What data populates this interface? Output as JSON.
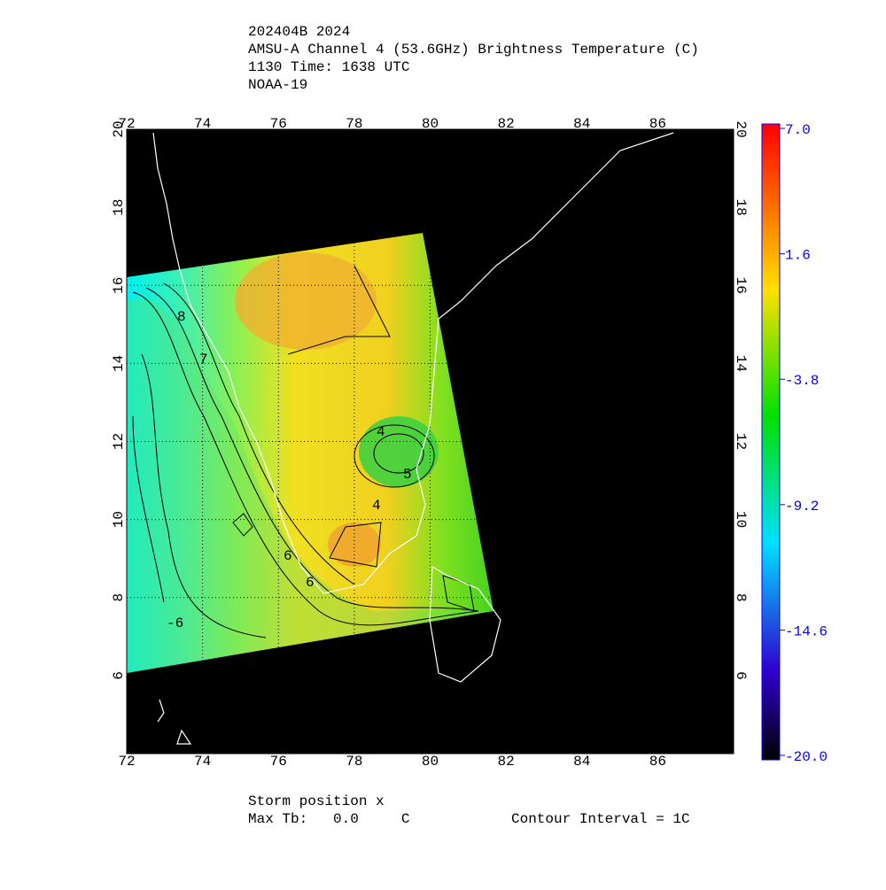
{
  "header": {
    "lines": [
      "202404B 2024",
      "AMSU-A Channel 4 (53.6GHz) Brightness Temperature (C)",
      "1130 Time: 1638 UTC",
      "NOAA-19"
    ]
  },
  "map": {
    "lon_range": [
      72,
      88
    ],
    "lat_range": [
      4,
      20
    ],
    "lon_ticks": [
      72,
      74,
      76,
      78,
      80,
      82,
      84,
      86
    ],
    "lat_ticks": [
      6,
      8,
      10,
      12,
      14,
      16,
      18,
      20
    ],
    "contour_labels": [
      "8",
      "7",
      "6",
      "4",
      "5",
      "4",
      "6",
      "-6"
    ]
  },
  "colorbar": {
    "range": [
      -20,
      7
    ],
    "ticks": [
      {
        "value": 7,
        "label": "7.0"
      },
      {
        "value": 1.6,
        "label": "1.6"
      },
      {
        "value": -3.8,
        "label": "-3.8"
      },
      {
        "value": -9.2,
        "label": "-9.2"
      },
      {
        "value": -14.6,
        "label": "-14.6"
      },
      {
        "value": -20,
        "label": "-20.0"
      }
    ]
  },
  "footer": {
    "storm": "Storm position x",
    "max_tb": "Max Tb:   0.0     C",
    "contour": "Contour Interval = 1C"
  }
}
